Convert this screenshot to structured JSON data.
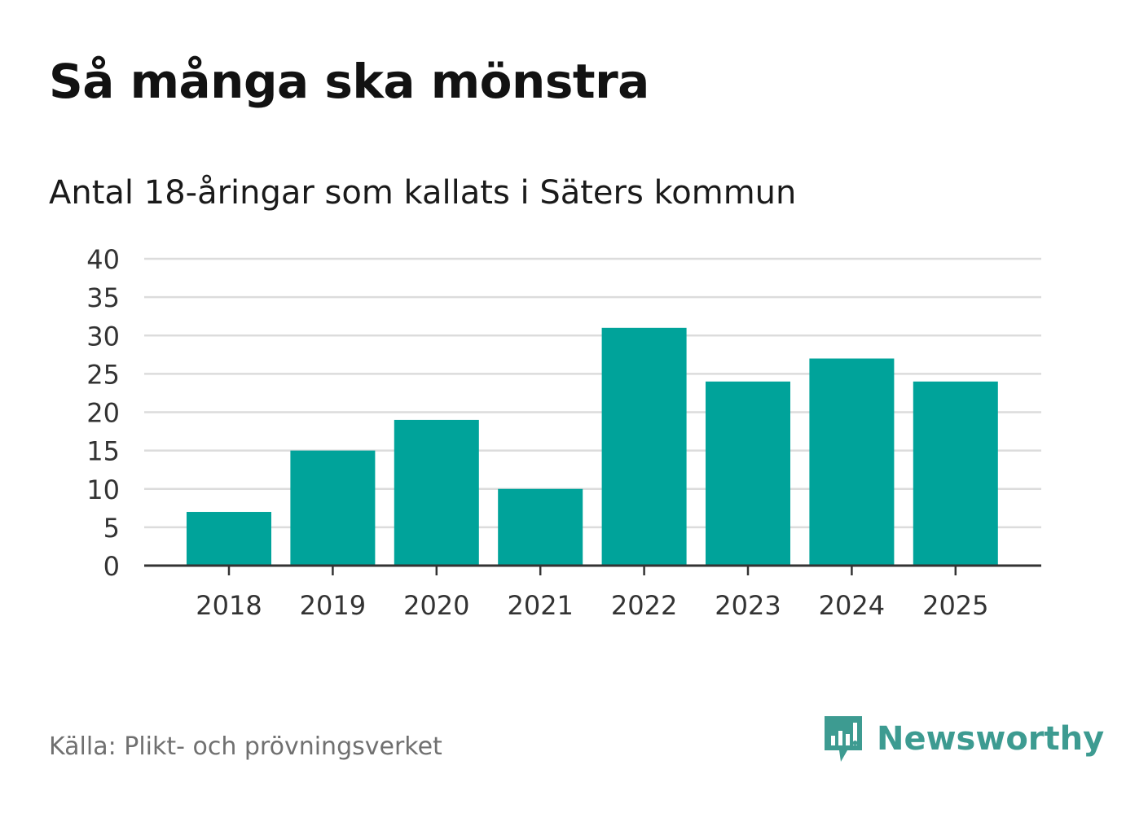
{
  "title": "Så många ska mönstra",
  "subtitle": "Antal 18-åringar som kallats i Säters kommun",
  "source": "Källa: Plikt- och prövningsverket",
  "brand": {
    "name": "Newsworthy",
    "icon": "newsworthy-logo-icon",
    "color": "#3d9b91"
  },
  "colors": {
    "bar": "#00a39a",
    "grid": "#dcdcdc",
    "axis": "#333333",
    "text": "#333333"
  },
  "chart_data": {
    "type": "bar",
    "title": "Så många ska mönstra",
    "subtitle": "Antal 18-åringar som kallats i Säters kommun",
    "categories": [
      "2018",
      "2019",
      "2020",
      "2021",
      "2022",
      "2023",
      "2024",
      "2025"
    ],
    "values": [
      7,
      15,
      19,
      10,
      31,
      24,
      27,
      24
    ],
    "xlabel": "",
    "ylabel": "",
    "ylim": [
      0,
      40
    ],
    "yticks": [
      "0",
      "5",
      "10",
      "15",
      "20",
      "25",
      "30",
      "35",
      "40"
    ],
    "grid": true,
    "legend": "none"
  }
}
